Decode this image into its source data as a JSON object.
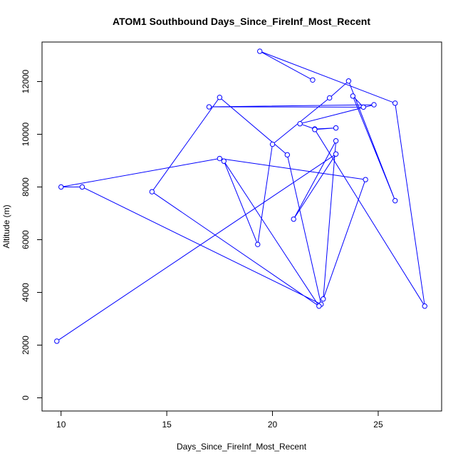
{
  "chart_data": {
    "type": "line",
    "title": "ATOM1 Southbound Days_Since_FireInf_Most_Recent",
    "xlabel": "Days_Since_FireInf_Most_Recent",
    "ylabel": "Altitude (m)",
    "xlim": [
      9.1,
      28.0
    ],
    "ylim": [
      -500,
      13500
    ],
    "x_ticks": [
      10,
      15,
      20,
      25
    ],
    "y_ticks": [
      0,
      2000,
      4000,
      6000,
      8000,
      10000,
      12000
    ],
    "grid": false,
    "color": "#0000ff",
    "x": [
      9.8,
      23.0,
      21.0,
      23.0,
      22.4,
      24.4,
      17.5,
      10.0,
      11.0,
      22.3,
      20.7,
      17.5,
      14.3,
      22.2,
      17.7,
      19.3,
      20.0,
      22.7,
      23.6,
      25.8,
      23.8,
      24.3,
      17.0,
      24.8,
      21.3,
      22.0,
      23.0,
      22.0,
      27.2,
      25.8,
      19.4,
      21.9
    ],
    "y": [
      2150,
      9250,
      6780,
      9750,
      3750,
      8280,
      9080,
      8000,
      8000,
      3550,
      9220,
      11400,
      7820,
      3480,
      8980,
      5820,
      9620,
      11380,
      12020,
      7480,
      11450,
      11030,
      11040,
      11120,
      10400,
      10200,
      10240,
      10180,
      3480,
      11180,
      13150,
      12060
    ]
  }
}
